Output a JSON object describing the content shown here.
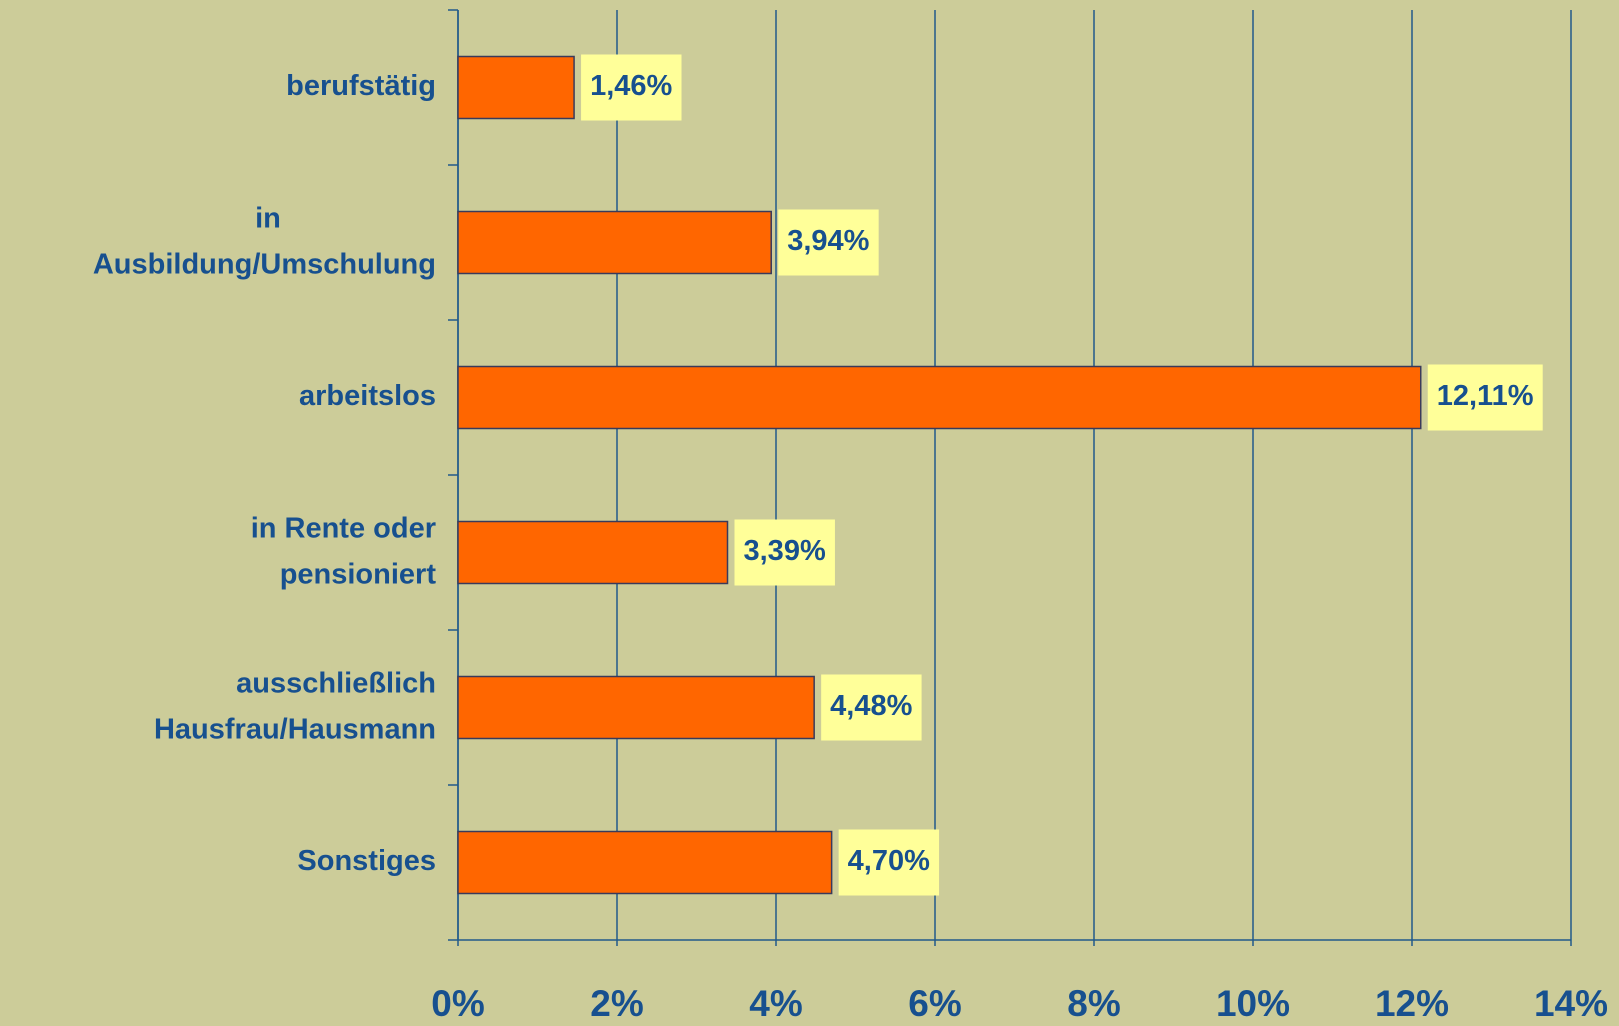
{
  "chart_data": {
    "type": "bar",
    "orientation": "horizontal",
    "categories": [
      "berufstätig",
      "in\nAusbildung/Umschulung",
      "arbeitslos",
      "in Rente oder\npensioniert",
      "ausschließlich\nHausfrau/Hausmann",
      "Sonstiges"
    ],
    "values": [
      1.46,
      3.94,
      12.11,
      3.39,
      4.48,
      4.7
    ],
    "value_labels": [
      "1,46%",
      "3,94%",
      "12,11%",
      "3,39%",
      "4,48%",
      "4,70%"
    ],
    "color": "#ff6600",
    "xlim": [
      0,
      14
    ],
    "xticks": [
      {
        "value": 0,
        "label": "0%"
      },
      {
        "value": 2,
        "label": "2%"
      },
      {
        "value": 4,
        "label": "4%"
      },
      {
        "value": 6,
        "label": "6%"
      },
      {
        "value": 8,
        "label": "8%"
      },
      {
        "value": 10,
        "label": "10%"
      },
      {
        "value": 12,
        "label": "12%"
      },
      {
        "value": 14,
        "label": "14%"
      }
    ],
    "grid": true
  }
}
